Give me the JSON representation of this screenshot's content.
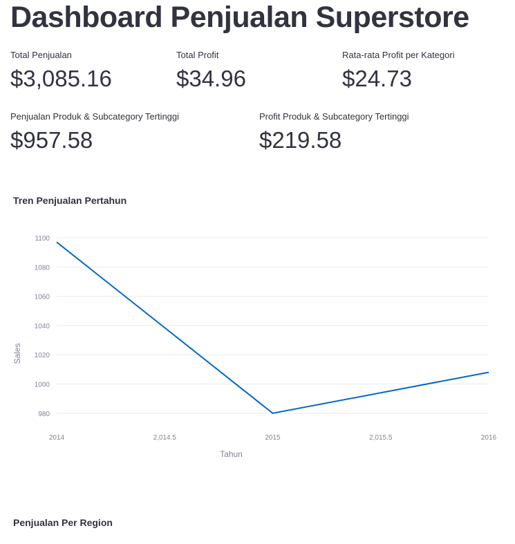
{
  "header": {
    "title": "Dashboard Penjualan Superstore"
  },
  "metrics": [
    {
      "label": "Total Penjualan",
      "value": "$3,085.16"
    },
    {
      "label": "Total Profit",
      "value": "$34.96"
    },
    {
      "label": "Rata-rata Profit per Kategori",
      "value": "$24.73"
    },
    {
      "label": "Penjualan Produk & Subcategory Tertinggi",
      "value": "$957.58"
    },
    {
      "label": "Profit Produk & Subcategory Tertinggi",
      "value": "$219.58"
    }
  ],
  "sections": {
    "trend_title": "Tren Penjualan Pertahun",
    "region_title": "Penjualan Per Region"
  },
  "chart_data": {
    "type": "line",
    "title": "Tren Penjualan Pertahun",
    "xlabel": "Tahun",
    "ylabel": "Sales",
    "x": [
      2014,
      2015,
      2016
    ],
    "series": [
      {
        "values": [
          1097,
          980,
          1008
        ]
      }
    ],
    "xlim": [
      2014,
      2016
    ],
    "ylim": [
      970,
      1100
    ],
    "xticks": [
      2014,
      2014.5,
      2015,
      2015.5,
      2016
    ],
    "xtick_labels": [
      "2014",
      "2,014.5",
      "2015",
      "2,015.5",
      "2016"
    ],
    "yticks": [
      980,
      1000,
      1020,
      1040,
      1060,
      1080,
      1100
    ],
    "grid": true,
    "line_color": "#0068c9"
  }
}
